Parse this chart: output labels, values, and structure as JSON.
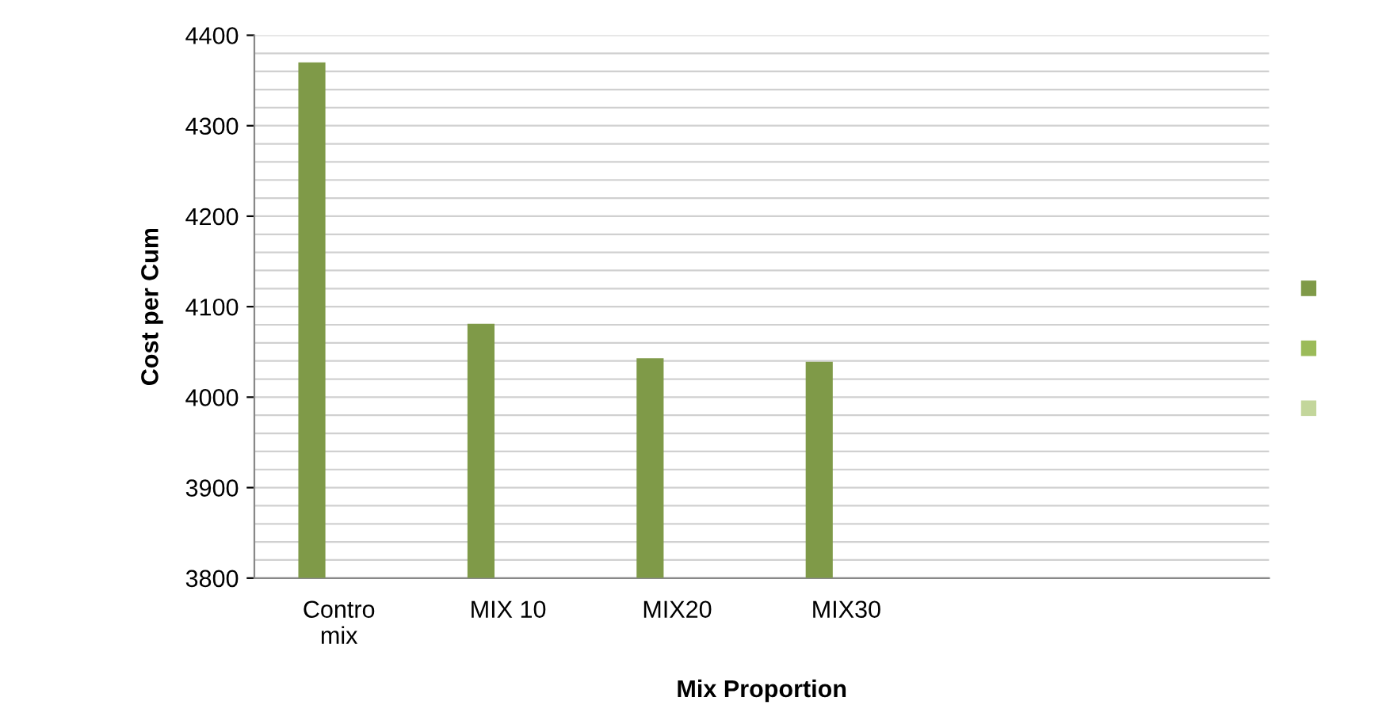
{
  "chart_data": {
    "type": "bar",
    "categories": [
      "Contro\nmix",
      "MIX 10",
      "MIX20",
      "MIX30",
      null,
      null
    ],
    "series": [
      {
        "color": "#7f9a48",
        "values": [
          4370,
          4081,
          4043,
          4039,
          null,
          null
        ]
      },
      {
        "color": "#9bbb59",
        "values": [
          null,
          null,
          null,
          null,
          null,
          null
        ]
      },
      {
        "color": "#c3d69b",
        "values": [
          null,
          null,
          null,
          null,
          null,
          null
        ]
      }
    ],
    "xlabel": "Mix Proportion",
    "ylabel": "Cost per Cum",
    "ylim": [
      3800,
      4400
    ],
    "yticks": [
      3800,
      {
        "value": 3820,
        "label": null
      },
      {
        "value": 3840,
        "label": null
      },
      {
        "value": 3860,
        "label": null
      },
      {
        "value": 3880,
        "label": null
      },
      3900,
      {
        "value": 3920,
        "label": null
      },
      {
        "value": 3940,
        "label": null
      },
      {
        "value": 3960,
        "label": null
      },
      {
        "value": 3980,
        "label": null
      },
      4000,
      {
        "value": 4020,
        "label": null
      },
      {
        "value": 4040,
        "label": null
      },
      {
        "value": 4060,
        "label": null
      },
      {
        "value": 4080,
        "label": null
      },
      4100,
      {
        "value": 4120,
        "label": null
      },
      {
        "value": 4140,
        "label": null
      },
      {
        "value": 4160,
        "label": null
      },
      {
        "value": 4180,
        "label": null
      },
      4200,
      {
        "value": 4220,
        "label": null
      },
      {
        "value": 4240,
        "label": null
      },
      {
        "value": 4260,
        "label": null
      },
      {
        "value": 4280,
        "label": null
      },
      4300,
      {
        "value": 4320,
        "label": null
      },
      {
        "value": 4340,
        "label": null
      },
      {
        "value": 4360,
        "label": null
      },
      {
        "value": 4380,
        "label": null
      },
      4400
    ],
    "grid": "y"
  }
}
